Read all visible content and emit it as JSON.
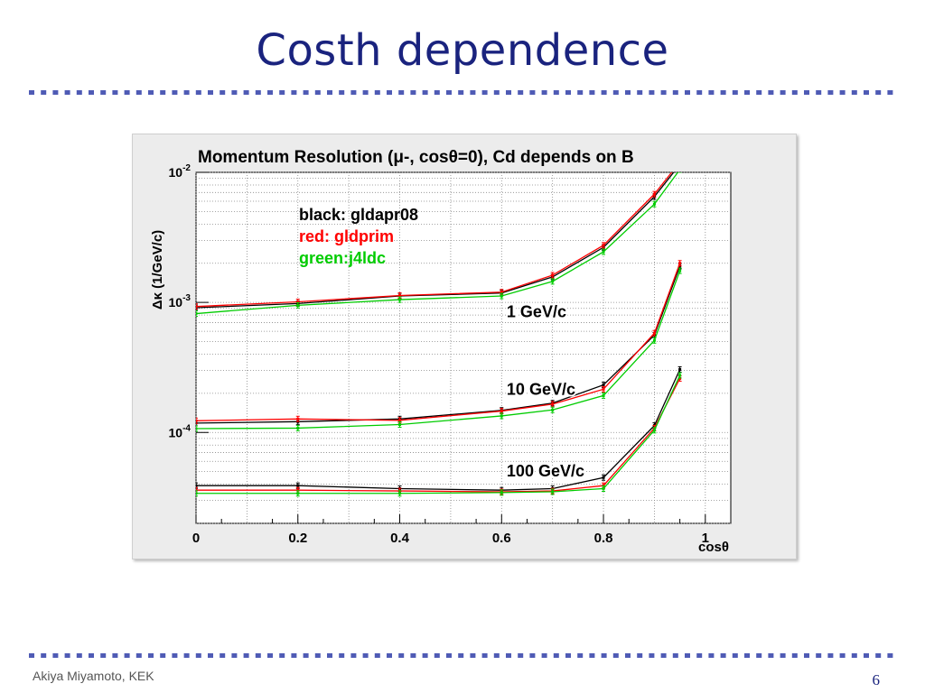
{
  "slide": {
    "title": "Costh dependence",
    "footer_author": "Akiya Miyamoto, KEK",
    "page_number": "6",
    "accent_color": "#1a237e",
    "rule_color": "#4f5bb5"
  },
  "chart_data": {
    "type": "line",
    "title": "Momentum Resolution (μ-, cosθ=0), Cd depends on B",
    "ylabel": "Δκ (1/GeV/c)",
    "xlabel": "cosθ",
    "xlim": [
      0,
      1.05
    ],
    "ylim": [
      2e-05,
      0.01
    ],
    "yscale": "log",
    "grid": true,
    "x_ticks": [
      "0",
      "0.2",
      "0.4",
      "0.6",
      "0.8",
      "1"
    ],
    "y_ticks": [
      {
        "base": "10",
        "exp": "-2",
        "value": 0.01
      },
      {
        "base": "10",
        "exp": "-3",
        "value": 0.001
      },
      {
        "base": "10",
        "exp": "-4",
        "value": 0.0001
      }
    ],
    "legend_text": [
      {
        "text": "black: gldapr08",
        "color": "#000000"
      },
      {
        "text": "red: gldprim",
        "color": "#ff0000"
      },
      {
        "text": "green:j4ldc",
        "color": "#00cc00"
      }
    ],
    "annotations": [
      {
        "text": "1 GeV/c",
        "x": 0.61,
        "y": 0.00077
      },
      {
        "text": "10 GeV/c",
        "x": 0.61,
        "y": 0.000195
      },
      {
        "text": "100 GeV/c",
        "x": 0.61,
        "y": 4.6e-05
      }
    ],
    "x": [
      0,
      0.2,
      0.4,
      0.6,
      0.7,
      0.8,
      0.9,
      0.95
    ],
    "series": [
      {
        "name": "black: gldapr08 1 GeV/c",
        "color": "#000000",
        "values": [
          0.00091,
          0.00098,
          0.00112,
          0.00118,
          0.00157,
          0.00265,
          0.0065,
          0.0115
        ]
      },
      {
        "name": "red: gldprim 1 GeV/c",
        "color": "#ff0000",
        "values": [
          0.00093,
          0.00101,
          0.00113,
          0.0012,
          0.00162,
          0.00275,
          0.0068,
          0.012
        ]
      },
      {
        "name": "green:j4ldc 1 GeV/c",
        "color": "#00cc00",
        "values": [
          0.00082,
          0.00095,
          0.00105,
          0.00112,
          0.00145,
          0.00245,
          0.0057,
          0.0105
        ]
      },
      {
        "name": "black: gldapr08 10 GeV/c",
        "color": "#000000",
        "values": [
          0.000118,
          0.000121,
          0.000127,
          0.000148,
          0.000168,
          0.000232,
          0.00056,
          0.0019
        ]
      },
      {
        "name": "red: gldprim 10 GeV/c",
        "color": "#ff0000",
        "values": [
          0.000123,
          0.000127,
          0.000124,
          0.000146,
          0.000165,
          0.000215,
          0.00058,
          0.002
        ]
      },
      {
        "name": "green:j4ldc 10 GeV/c",
        "color": "#00cc00",
        "values": [
          0.000107,
          0.000108,
          0.000115,
          0.000134,
          0.000149,
          0.000192,
          0.00051,
          0.00175
        ]
      },
      {
        "name": "black: gldapr08 100 GeV/c",
        "color": "#000000",
        "values": [
          3.9e-05,
          3.9e-05,
          3.7e-05,
          3.6e-05,
          3.7e-05,
          4.5e-05,
          0.000113,
          0.000305
        ]
      },
      {
        "name": "red: gldprim 100 GeV/c",
        "color": "#ff0000",
        "values": [
          3.6e-05,
          3.6e-05,
          3.55e-05,
          3.5e-05,
          3.55e-05,
          3.9e-05,
          0.000108,
          0.00026
        ]
      },
      {
        "name": "green:j4ldc 100 GeV/c",
        "color": "#00cc00",
        "values": [
          3.4e-05,
          3.4e-05,
          3.4e-05,
          3.45e-05,
          3.5e-05,
          3.7e-05,
          0.000104,
          0.000275
        ]
      }
    ]
  }
}
